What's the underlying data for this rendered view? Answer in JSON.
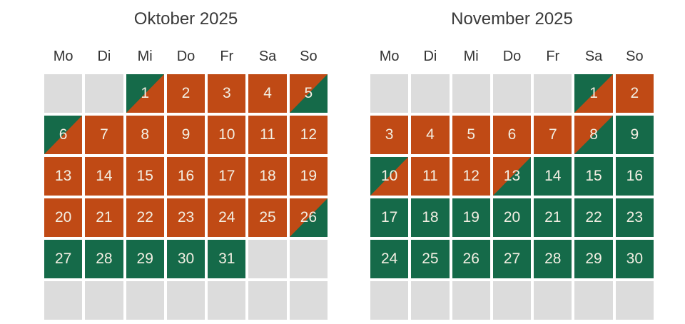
{
  "colors": {
    "booked": "#c04a15",
    "available": "#156a49",
    "outside": "#dcdcdc",
    "day_text": "#f3efe3",
    "heading_text": "#3a3a3a"
  },
  "weekdays": [
    "Mo",
    "Di",
    "Mi",
    "Do",
    "Fr",
    "Sa",
    "So"
  ],
  "calendars": [
    {
      "title": "Oktober 2025",
      "cells": [
        {
          "day": "",
          "state": "outside"
        },
        {
          "day": "",
          "state": "outside"
        },
        {
          "day": "1",
          "state": "checkin"
        },
        {
          "day": "2",
          "state": "booked"
        },
        {
          "day": "3",
          "state": "booked"
        },
        {
          "day": "4",
          "state": "booked"
        },
        {
          "day": "5",
          "state": "checkout"
        },
        {
          "day": "6",
          "state": "checkin"
        },
        {
          "day": "7",
          "state": "booked"
        },
        {
          "day": "8",
          "state": "booked"
        },
        {
          "day": "9",
          "state": "booked"
        },
        {
          "day": "10",
          "state": "booked"
        },
        {
          "day": "11",
          "state": "booked"
        },
        {
          "day": "12",
          "state": "booked"
        },
        {
          "day": "13",
          "state": "booked"
        },
        {
          "day": "14",
          "state": "booked"
        },
        {
          "day": "15",
          "state": "booked"
        },
        {
          "day": "16",
          "state": "booked"
        },
        {
          "day": "17",
          "state": "booked"
        },
        {
          "day": "18",
          "state": "booked"
        },
        {
          "day": "19",
          "state": "booked"
        },
        {
          "day": "20",
          "state": "booked"
        },
        {
          "day": "21",
          "state": "booked"
        },
        {
          "day": "22",
          "state": "booked"
        },
        {
          "day": "23",
          "state": "booked"
        },
        {
          "day": "24",
          "state": "booked"
        },
        {
          "day": "25",
          "state": "booked"
        },
        {
          "day": "26",
          "state": "checkout"
        },
        {
          "day": "27",
          "state": "available"
        },
        {
          "day": "28",
          "state": "available"
        },
        {
          "day": "29",
          "state": "available"
        },
        {
          "day": "30",
          "state": "available"
        },
        {
          "day": "31",
          "state": "available"
        },
        {
          "day": "",
          "state": "outside"
        },
        {
          "day": "",
          "state": "outside"
        },
        {
          "day": "",
          "state": "outside"
        },
        {
          "day": "",
          "state": "outside"
        },
        {
          "day": "",
          "state": "outside"
        },
        {
          "day": "",
          "state": "outside"
        },
        {
          "day": "",
          "state": "outside"
        },
        {
          "day": "",
          "state": "outside"
        },
        {
          "day": "",
          "state": "outside"
        }
      ]
    },
    {
      "title": "November 2025",
      "cells": [
        {
          "day": "",
          "state": "outside"
        },
        {
          "day": "",
          "state": "outside"
        },
        {
          "day": "",
          "state": "outside"
        },
        {
          "day": "",
          "state": "outside"
        },
        {
          "day": "",
          "state": "outside"
        },
        {
          "day": "1",
          "state": "checkin"
        },
        {
          "day": "2",
          "state": "booked"
        },
        {
          "day": "3",
          "state": "booked"
        },
        {
          "day": "4",
          "state": "booked"
        },
        {
          "day": "5",
          "state": "booked"
        },
        {
          "day": "6",
          "state": "booked"
        },
        {
          "day": "7",
          "state": "booked"
        },
        {
          "day": "8",
          "state": "checkout"
        },
        {
          "day": "9",
          "state": "available"
        },
        {
          "day": "10",
          "state": "checkin"
        },
        {
          "day": "11",
          "state": "booked"
        },
        {
          "day": "12",
          "state": "booked"
        },
        {
          "day": "13",
          "state": "checkout"
        },
        {
          "day": "14",
          "state": "available"
        },
        {
          "day": "15",
          "state": "available"
        },
        {
          "day": "16",
          "state": "available"
        },
        {
          "day": "17",
          "state": "available"
        },
        {
          "day": "18",
          "state": "available"
        },
        {
          "day": "19",
          "state": "available"
        },
        {
          "day": "20",
          "state": "available"
        },
        {
          "day": "21",
          "state": "available"
        },
        {
          "day": "22",
          "state": "available"
        },
        {
          "day": "23",
          "state": "available"
        },
        {
          "day": "24",
          "state": "available"
        },
        {
          "day": "25",
          "state": "available"
        },
        {
          "day": "26",
          "state": "available"
        },
        {
          "day": "27",
          "state": "available"
        },
        {
          "day": "28",
          "state": "available"
        },
        {
          "day": "29",
          "state": "available"
        },
        {
          "day": "30",
          "state": "available"
        },
        {
          "day": "",
          "state": "outside"
        },
        {
          "day": "",
          "state": "outside"
        },
        {
          "day": "",
          "state": "outside"
        },
        {
          "day": "",
          "state": "outside"
        },
        {
          "day": "",
          "state": "outside"
        },
        {
          "day": "",
          "state": "outside"
        },
        {
          "day": "",
          "state": "outside"
        }
      ]
    }
  ]
}
